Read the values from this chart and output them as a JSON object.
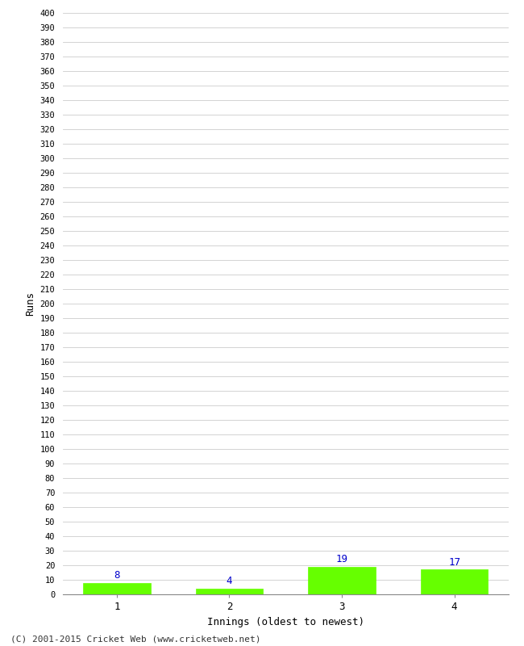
{
  "categories": [
    1,
    2,
    3,
    4
  ],
  "values": [
    8,
    4,
    19,
    17
  ],
  "bar_color": "#66ff00",
  "bar_edge_color": "#66ff00",
  "label_color": "#0000cc",
  "xlabel": "Innings (oldest to newest)",
  "ylabel": "Runs",
  "ylim": [
    0,
    400
  ],
  "ytick_step": 10,
  "background_color": "#ffffff",
  "grid_color": "#cccccc",
  "footer": "(C) 2001-2015 Cricket Web (www.cricketweb.net)"
}
